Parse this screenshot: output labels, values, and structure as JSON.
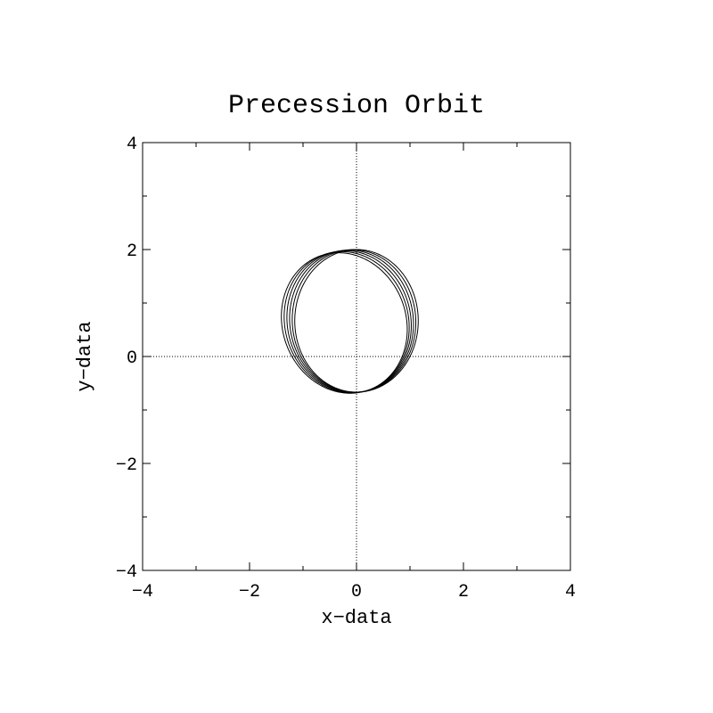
{
  "chart_data": {
    "type": "line",
    "title": "Precession Orbit",
    "xlabel": "x−data",
    "ylabel": "y−data",
    "xlim": [
      -4,
      4
    ],
    "ylim": [
      -4,
      4
    ],
    "xticks": [
      -4,
      -2,
      0,
      2,
      4
    ],
    "yticks": [
      -4,
      -2,
      0,
      2,
      4
    ],
    "xtick_labels": [
      "−4",
      "−2",
      "0",
      "2",
      "4"
    ],
    "ytick_labels": [
      "−4",
      "−2",
      "0",
      "2",
      "4"
    ],
    "minor_tick_step": 1,
    "zero_lines": true,
    "grid": false,
    "line_color": "#000000",
    "orbit": {
      "focus": [
        0,
        0
      ],
      "semi_latus_rectum": 1,
      "eccentricity": 0.5,
      "periapsis_angles_deg": [
        -90,
        -86,
        -82,
        -78,
        -74,
        -70
      ]
    },
    "series": []
  }
}
